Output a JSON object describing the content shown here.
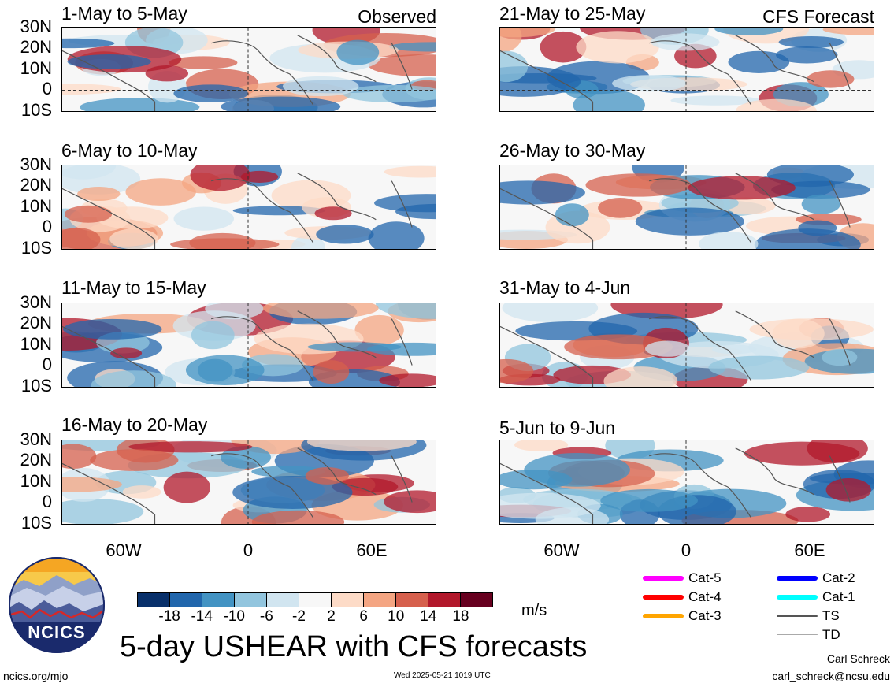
{
  "header": {
    "observed_label": "Observed",
    "forecast_label": "CFS Forecast"
  },
  "panels_left": [
    {
      "title": "1-May to 5-May"
    },
    {
      "title": "6-May to 10-May"
    },
    {
      "title": "11-May to 15-May"
    },
    {
      "title": "16-May to 20-May"
    }
  ],
  "panels_right": [
    {
      "title": "21-May to 25-May"
    },
    {
      "title": "26-May to 30-May"
    },
    {
      "title": "31-May to 4-Jun"
    },
    {
      "title": "5-Jun to 9-Jun"
    }
  ],
  "lat_labels": [
    "30N",
    "20N",
    "10N",
    "0",
    "10S"
  ],
  "lon_labels": [
    "60W",
    "0",
    "60E"
  ],
  "colorbar": {
    "ticks": [
      "-18",
      "-14",
      "-10",
      "-6",
      "-2",
      "2",
      "6",
      "10",
      "14",
      "18"
    ],
    "colors": [
      "#08306b",
      "#2166ac",
      "#4393c3",
      "#92c5de",
      "#d1e5f0",
      "#f7f7f7",
      "#fddbc7",
      "#f4a582",
      "#d6604d",
      "#b2182b",
      "#67001f"
    ],
    "unit": "m/s"
  },
  "legend": [
    {
      "label": "Cat-5",
      "color": "#ff00ff"
    },
    {
      "label": "Cat-4",
      "color": "#ff0000"
    },
    {
      "label": "Cat-3",
      "color": "#ffa500"
    },
    {
      "label": "Cat-2",
      "color": "#0000ff"
    },
    {
      "label": "Cat-1",
      "color": "#00ffff"
    },
    {
      "label": "TS",
      "color": "#555555"
    },
    {
      "label": "TD",
      "color": "#aaaaaa"
    }
  ],
  "logo": {
    "text": "NCICS"
  },
  "main_title": "5-day USHEAR with CFS forecasts",
  "footer": {
    "url": "ncics.org/mjo",
    "timestamp": "Wed 2025-05-21 1019 UTC",
    "author": "Carl Schreck",
    "email": "carl_schreck@ncsu.edu"
  }
}
